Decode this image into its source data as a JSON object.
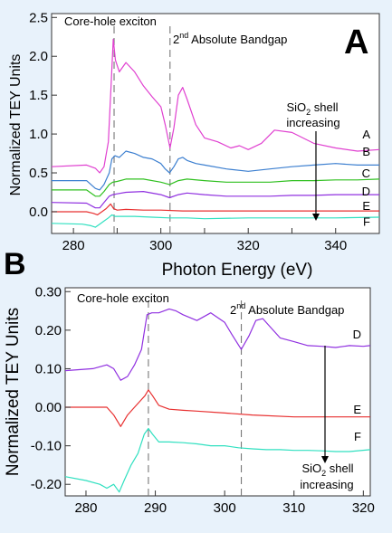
{
  "chart_data": [
    {
      "panel_label": "A",
      "type": "line",
      "xlabel": "Photon Energy (eV)",
      "ylabel": "Normalized TEY Units",
      "xlim": [
        275,
        350
      ],
      "ylim": [
        -0.28,
        2.55
      ],
      "xticks": [
        280,
        290,
        300,
        310,
        320,
        330,
        340
      ],
      "xtick_labels": [
        "280",
        "",
        "300",
        "",
        "320",
        "",
        "340"
      ],
      "yticks": [
        0.0,
        0.5,
        1.0,
        1.5,
        2.0,
        2.5
      ],
      "ytick_labels": [
        "0.0",
        "0.5",
        "1.0",
        "1.5",
        "2.0",
        "2.5"
      ],
      "grid": false,
      "annotations": [
        {
          "text": "Core-hole exciton",
          "x": 289.3
        },
        {
          "text_base": "2",
          "text_sup": "nd",
          "text_rest": " Absolute Bandgap",
          "x": 302.1
        }
      ],
      "arrow_label_lines": [
        "SiO",
        "2",
        " shell",
        "increasing"
      ],
      "series": [
        {
          "name": "A",
          "color": "#e040d0",
          "x": [
            275,
            283,
            285,
            286,
            287,
            288,
            288.6,
            289.1,
            289.6,
            290.5,
            292,
            294,
            296,
            298,
            300,
            301,
            302.1,
            303,
            304,
            305,
            306,
            308,
            310,
            313,
            316,
            318,
            320,
            323,
            326,
            330,
            335,
            340,
            345,
            350
          ],
          "y": [
            0.58,
            0.6,
            0.56,
            0.5,
            0.58,
            0.9,
            1.6,
            2.22,
            1.95,
            1.8,
            1.92,
            1.8,
            1.62,
            1.48,
            1.35,
            1.12,
            0.82,
            1.08,
            1.5,
            1.6,
            1.45,
            1.12,
            0.95,
            0.9,
            0.82,
            0.85,
            0.8,
            0.88,
            1.05,
            1.02,
            0.88,
            0.82,
            0.78,
            0.8
          ]
        },
        {
          "name": "B",
          "color": "#3c7fd0",
          "x": [
            275,
            283,
            285,
            286,
            287,
            288.2,
            288.8,
            289.5,
            290.5,
            292,
            294,
            296,
            298,
            300,
            301,
            302,
            303,
            304,
            305,
            306,
            308,
            310,
            315,
            320,
            325,
            330,
            335,
            340,
            345,
            350
          ],
          "y": [
            0.4,
            0.4,
            0.3,
            0.28,
            0.35,
            0.5,
            0.68,
            0.72,
            0.7,
            0.78,
            0.75,
            0.7,
            0.68,
            0.62,
            0.55,
            0.5,
            0.58,
            0.68,
            0.7,
            0.66,
            0.62,
            0.6,
            0.55,
            0.52,
            0.55,
            0.58,
            0.6,
            0.62,
            0.6,
            0.6
          ]
        },
        {
          "name": "C",
          "color": "#30c020",
          "x": [
            275,
            283,
            285,
            286,
            287,
            288.2,
            289,
            290,
            292,
            296,
            300,
            302,
            304,
            306,
            310,
            315,
            320,
            325,
            330,
            335,
            340,
            345,
            350
          ],
          "y": [
            0.28,
            0.28,
            0.2,
            0.2,
            0.26,
            0.35,
            0.38,
            0.39,
            0.42,
            0.42,
            0.38,
            0.35,
            0.4,
            0.42,
            0.4,
            0.38,
            0.38,
            0.38,
            0.4,
            0.4,
            0.41,
            0.41,
            0.42
          ]
        },
        {
          "name": "D",
          "color": "#9030e0",
          "x": [
            275,
            283,
            285,
            286,
            287,
            288.2,
            289,
            290,
            292,
            296,
            300,
            302,
            304,
            306,
            310,
            315,
            320,
            325,
            330,
            335,
            340,
            345,
            350
          ],
          "y": [
            0.12,
            0.11,
            0.05,
            0.05,
            0.12,
            0.2,
            0.22,
            0.23,
            0.25,
            0.26,
            0.22,
            0.18,
            0.22,
            0.24,
            0.22,
            0.2,
            0.2,
            0.2,
            0.21,
            0.21,
            0.22,
            0.22,
            0.22
          ]
        },
        {
          "name": "E",
          "color": "#e83030",
          "x": [
            275,
            283,
            284.5,
            285.5,
            286.5,
            287.5,
            288.5,
            289.2,
            290,
            292,
            296,
            300,
            305,
            310,
            320,
            330,
            340,
            350
          ],
          "y": [
            0.0,
            0.0,
            -0.02,
            -0.04,
            0.0,
            0.04,
            0.1,
            0.04,
            0.02,
            0.03,
            0.02,
            0.02,
            0.01,
            0.01,
            0.01,
            0.01,
            0.01,
            0.01
          ]
        },
        {
          "name": "F",
          "color": "#30e0c0",
          "x": [
            275,
            282,
            284,
            285,
            286,
            287,
            288,
            288.8,
            289.5,
            291,
            294,
            298,
            302,
            306,
            310,
            320,
            330,
            340,
            350
          ],
          "y": [
            -0.15,
            -0.16,
            -0.18,
            -0.2,
            -0.16,
            -0.12,
            -0.08,
            -0.04,
            -0.06,
            -0.06,
            -0.06,
            -0.07,
            -0.08,
            -0.08,
            -0.09,
            -0.08,
            -0.08,
            -0.08,
            -0.07
          ]
        }
      ]
    },
    {
      "panel_label": "B",
      "type": "line",
      "xlabel": "",
      "ylabel": "Normalized TEY Units",
      "xlim": [
        277,
        321
      ],
      "ylim": [
        -0.23,
        0.31
      ],
      "xticks": [
        280,
        290,
        300,
        310,
        320
      ],
      "xtick_labels": [
        "280",
        "290",
        "300",
        "310",
        "320"
      ],
      "yticks": [
        -0.2,
        -0.1,
        0.0,
        0.1,
        0.2,
        0.3
      ],
      "ytick_labels": [
        "-0.20",
        "-0.10",
        "0.00",
        "0.10",
        "0.20",
        "0.30"
      ],
      "grid": false,
      "annotations": [
        {
          "text": "Core-hole exciton",
          "x": 289.0
        },
        {
          "text_base": "2",
          "text_sup": "nd",
          "text_rest": " Absolute Bandgap",
          "x": 302.4
        }
      ],
      "arrow_label_lines": [
        "SiO",
        "2",
        " shell",
        "increasing"
      ],
      "series": [
        {
          "name": "D",
          "color": "#9030e0",
          "x": [
            277,
            281,
            283,
            284,
            285,
            286,
            287,
            288,
            288.8,
            289.5,
            290.5,
            292,
            293,
            294,
            296,
            298,
            300,
            301,
            302.4,
            303.5,
            304.5,
            305.5,
            306.5,
            308,
            310,
            312,
            314,
            316,
            318,
            320,
            321
          ],
          "y": [
            0.095,
            0.1,
            0.11,
            0.1,
            0.07,
            0.08,
            0.11,
            0.15,
            0.24,
            0.245,
            0.245,
            0.255,
            0.25,
            0.24,
            0.225,
            0.245,
            0.22,
            0.19,
            0.15,
            0.185,
            0.225,
            0.23,
            0.21,
            0.18,
            0.17,
            0.16,
            0.158,
            0.155,
            0.16,
            0.158,
            0.16
          ]
        },
        {
          "name": "E",
          "color": "#e83030",
          "x": [
            277,
            283,
            284,
            285,
            286,
            287,
            288,
            288.5,
            289,
            289.6,
            290.5,
            292,
            294,
            296,
            300,
            304,
            310,
            315,
            321
          ],
          "y": [
            0.0,
            0.0,
            -0.02,
            -0.05,
            -0.02,
            0.0,
            0.02,
            0.03,
            0.045,
            0.03,
            0.005,
            -0.005,
            -0.008,
            -0.01,
            -0.015,
            -0.02,
            -0.025,
            -0.025,
            -0.025
          ]
        },
        {
          "name": "F",
          "color": "#30e0c0",
          "x": [
            277,
            280,
            282,
            283,
            284,
            284.8,
            285.5,
            286.5,
            287.5,
            288.4,
            289,
            289.6,
            290.5,
            292,
            294,
            296,
            298,
            300,
            302,
            304,
            306,
            308,
            310,
            312,
            314,
            316,
            318,
            321
          ],
          "y": [
            -0.18,
            -0.19,
            -0.2,
            -0.21,
            -0.2,
            -0.22,
            -0.19,
            -0.15,
            -0.12,
            -0.07,
            -0.055,
            -0.07,
            -0.09,
            -0.09,
            -0.092,
            -0.095,
            -0.1,
            -0.1,
            -0.105,
            -0.108,
            -0.11,
            -0.11,
            -0.112,
            -0.112,
            -0.113,
            -0.115,
            -0.115,
            -0.11
          ]
        }
      ]
    }
  ]
}
